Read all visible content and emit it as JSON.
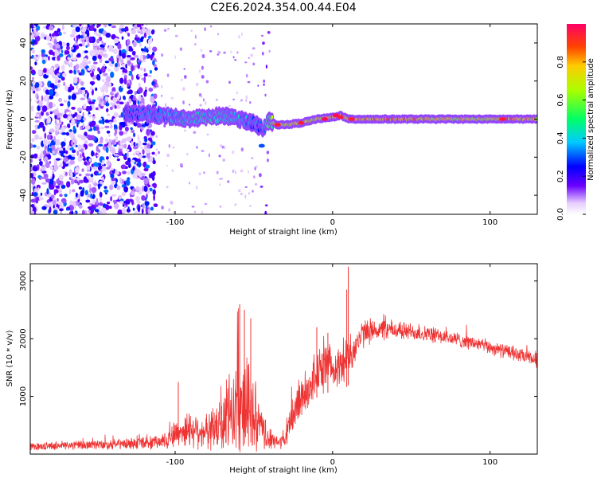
{
  "chart_data": [
    {
      "type": "heatmap",
      "title": "C2E6.2024.354.00.44.E04",
      "xlabel": "Height of straight line (km)",
      "ylabel": "Frequency (Hz)",
      "xlim": [
        -192,
        130
      ],
      "ylim": [
        -50,
        50
      ],
      "x_ticks": [
        -100,
        0,
        100
      ],
      "x_tick_labels": [
        "-100",
        "0",
        "100"
      ],
      "y_ticks": [
        -40,
        -20,
        0,
        20,
        40
      ],
      "y_tick_labels": [
        "-40",
        "-20",
        "0",
        "20",
        "40"
      ],
      "colorbar": {
        "label": "Normalized spectral amplitude",
        "range": [
          0,
          1
        ],
        "ticks": [
          0.0,
          0.2,
          0.4,
          0.6,
          0.8
        ],
        "tick_labels": [
          "0.0",
          "0.2",
          "0.4",
          "0.6",
          "0.8"
        ]
      },
      "ridge": {
        "x": [
          -130,
          -120,
          -110,
          -100,
          -90,
          -80,
          -70,
          -60,
          -50,
          -45,
          -40,
          -35,
          -30,
          -20,
          -10,
          0,
          5,
          10,
          20,
          40,
          60,
          80,
          100,
          110,
          130
        ],
        "frequency": [
          3,
          3,
          2,
          1,
          0,
          1,
          2,
          0,
          -2,
          -5,
          -1,
          -3,
          -3,
          -2,
          0,
          1,
          2,
          0,
          0,
          0,
          0,
          0,
          0,
          0,
          0
        ],
        "amplitude": [
          0.3,
          0.35,
          0.35,
          0.4,
          0.45,
          0.45,
          0.45,
          0.4,
          0.35,
          0.3,
          0.55,
          0.75,
          0.75,
          0.7,
          0.75,
          0.85,
          0.9,
          0.8,
          0.85,
          0.85,
          0.8,
          0.75,
          0.7,
          0.85,
          0.8
        ]
      },
      "spots": [
        {
          "x": -35,
          "y": -3,
          "a": 0.95
        },
        {
          "x": -20,
          "y": -2,
          "a": 0.95
        },
        {
          "x": -5,
          "y": 0,
          "a": 0.98
        },
        {
          "x": 2,
          "y": 2,
          "a": 0.98
        },
        {
          "x": 5,
          "y": 1,
          "a": 0.95
        },
        {
          "x": 12,
          "y": 0,
          "a": 0.95
        },
        {
          "x": 108,
          "y": 0,
          "a": 0.95
        },
        {
          "x": -45,
          "y": -14,
          "a": 0.3
        }
      ]
    },
    {
      "type": "line",
      "xlabel": "Height of straight line (km)",
      "ylabel": "SNR (10 * v/v)",
      "xlim": [
        -192,
        130
      ],
      "ylim": [
        0,
        3300
      ],
      "x_ticks": [
        -100,
        0,
        100
      ],
      "x_tick_labels": [
        "-100",
        "0",
        "100"
      ],
      "y_ticks": [
        1000,
        2000,
        3000
      ],
      "y_tick_labels": [
        "1000",
        "2000",
        "3000"
      ],
      "series": [
        {
          "name": "SNR",
          "color": "#ee3333",
          "envelope_x": [
            -192,
            -170,
            -150,
            -130,
            -110,
            -100,
            -90,
            -80,
            -70,
            -65,
            -60,
            -55,
            -50,
            -45,
            -40,
            -35,
            -30,
            -25,
            -20,
            -15,
            -10,
            -5,
            0,
            5,
            10,
            15,
            20,
            25,
            30,
            40,
            50,
            60,
            70,
            80,
            90,
            100,
            110,
            120,
            130
          ],
          "envelope_mean": [
            130,
            150,
            160,
            180,
            200,
            350,
            450,
            380,
            500,
            700,
            900,
            800,
            600,
            400,
            250,
            200,
            250,
            700,
            1000,
            1150,
            1400,
            1500,
            1550,
            1500,
            1700,
            1900,
            2100,
            2150,
            2150,
            2150,
            2120,
            2080,
            2030,
            1980,
            1920,
            1850,
            1780,
            1700,
            1620
          ],
          "envelope_noise": [
            60,
            80,
            90,
            100,
            130,
            250,
            350,
            300,
            600,
            800,
            900,
            900,
            700,
            400,
            200,
            100,
            200,
            400,
            450,
            400,
            400,
            450,
            400,
            350,
            400,
            300,
            250,
            220,
            200,
            180,
            160,
            150,
            140,
            140,
            130,
            130,
            130,
            130,
            130
          ],
          "peaks": [
            {
              "x": 10,
              "y": 3250
            },
            {
              "x": 9,
              "y": 2850
            },
            {
              "x": -59,
              "y": 2600
            },
            {
              "x": -56,
              "y": 2500
            },
            {
              "x": -52,
              "y": 2350
            },
            {
              "x": -10,
              "y": 2200
            },
            {
              "x": -98,
              "y": 1250
            },
            {
              "x": -3,
              "y": 2100
            }
          ]
        }
      ]
    }
  ]
}
